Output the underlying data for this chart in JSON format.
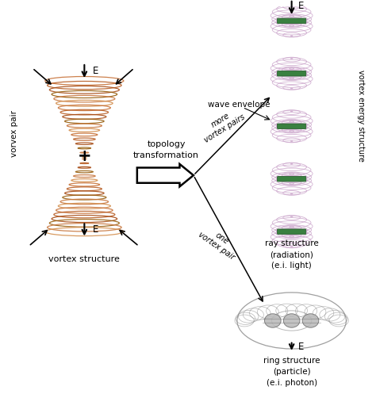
{
  "bg_color": "#ffffff",
  "vortex_colors": [
    "#c8733a",
    "#b85e25",
    "#a84e18",
    "#986010",
    "#c87840",
    "#d49050"
  ],
  "ray_color": "#c8a0c8",
  "ray_color2": "#b890b8",
  "green_color": "#3a8040",
  "green_dark": "#2a6030",
  "torus_color": "#888888",
  "torus_inner_color": "#aaaaaa",
  "torus_bg": "#cccccc",
  "text_color": "#000000",
  "arrow_color": "#000000",
  "label_vorvex_pair": "vorvex pair",
  "label_vortex_structure": "vortex structure",
  "label_topology": "topology\ntransformation",
  "label_wave_envelope": "wave envelope",
  "label_more_vortex": "more\nvortex pairs",
  "label_one_vortex": "one\nvortex pair",
  "label_ray_structure": "ray structure\n(radiation)\n(e.i. light)",
  "label_ring_structure": "ring structure\n(particle)\n(e.i. photon)",
  "label_vortex_energy": "vortex energy structure",
  "label_E": "E",
  "figsize": [
    4.74,
    4.97
  ],
  "dpi": 100
}
